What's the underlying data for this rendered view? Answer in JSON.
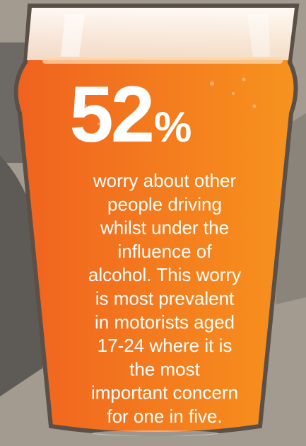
{
  "stat": {
    "number": "52",
    "unit": "%"
  },
  "body": {
    "lines": [
      "worry about other",
      "people driving",
      "whilst under the",
      "influence of",
      "alcohol. This worry",
      "is most prevalent",
      "in motorists aged",
      "17-24 where it is",
      "the most",
      "important concern",
      "for one in five."
    ]
  }
}
